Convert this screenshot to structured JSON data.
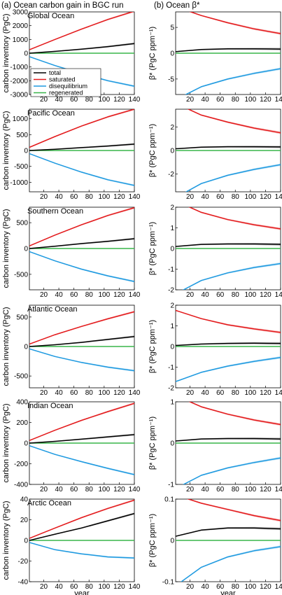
{
  "figure": {
    "col_titles": [
      "(a) Ocean carbon gain in BGC run",
      "(b) Ocean β*"
    ],
    "left_ylabel": "carbon inventory (PgC)",
    "right_ylabel": "β* (PgC ppm⁻¹)",
    "xlabel": "year",
    "legend": [
      "total",
      "saturated",
      "disequilibrium",
      "regenerated"
    ],
    "colors": {
      "total": "#000000",
      "saturated": "#e31a1c",
      "disequilibrium": "#1f9ae0",
      "regenerated": "#39b54a"
    }
  },
  "chart_data": [
    {
      "type": "line",
      "panel": "a",
      "title": "Global Ocean",
      "xlim": [
        1,
        140
      ],
      "ylim": [
        -3000,
        3000
      ],
      "xticks": [
        20,
        40,
        60,
        80,
        100,
        120,
        140
      ],
      "yticks": [
        -3000,
        -2000,
        -1000,
        0,
        1000,
        2000,
        3000
      ],
      "x": [
        1,
        35,
        70,
        105,
        140
      ],
      "series": [
        {
          "name": "total",
          "values": [
            0,
            130,
            290,
            480,
            700
          ]
        },
        {
          "name": "saturated",
          "values": [
            250,
            1000,
            1750,
            2450,
            3050
          ]
        },
        {
          "name": "disequilibrium",
          "values": [
            -250,
            -900,
            -1480,
            -2000,
            -2400
          ]
        },
        {
          "name": "regenerated",
          "values": [
            0,
            0,
            0,
            0,
            0
          ]
        }
      ]
    },
    {
      "type": "line",
      "panel": "b",
      "title": "",
      "xlim": [
        1,
        140
      ],
      "ylim": [
        -8,
        8
      ],
      "xticks": [
        20,
        40,
        60,
        80,
        100,
        120,
        140
      ],
      "yticks": [
        -5,
        0,
        5
      ],
      "x": [
        1,
        35,
        70,
        105,
        140
      ],
      "series": [
        {
          "name": "total",
          "values": [
            0.3,
            0.7,
            0.85,
            0.85,
            0.8
          ]
        },
        {
          "name": "saturated",
          "values": [
            9,
            7.3,
            5.9,
            4.7,
            3.8
          ]
        },
        {
          "name": "disequilibrium",
          "values": [
            -9,
            -6.5,
            -5,
            -3.9,
            -3.0
          ]
        },
        {
          "name": "regenerated",
          "values": [
            0,
            0,
            0,
            0,
            0
          ]
        }
      ]
    },
    {
      "type": "line",
      "panel": "a",
      "title": "Pacific Ocean",
      "xlim": [
        1,
        140
      ],
      "ylim": [
        -1300,
        1300
      ],
      "xticks": [
        20,
        40,
        60,
        80,
        100,
        120,
        140
      ],
      "yticks": [
        -1000,
        -500,
        0,
        500,
        1000
      ],
      "x": [
        1,
        35,
        70,
        105,
        140
      ],
      "series": [
        {
          "name": "total",
          "values": [
            0,
            40,
            90,
            140,
            200
          ]
        },
        {
          "name": "saturated",
          "values": [
            100,
            440,
            770,
            1060,
            1300
          ]
        },
        {
          "name": "disequilibrium",
          "values": [
            -100,
            -400,
            -680,
            -920,
            -1100
          ]
        },
        {
          "name": "regenerated",
          "values": [
            0,
            0,
            0,
            0,
            0
          ]
        }
      ]
    },
    {
      "type": "line",
      "panel": "b",
      "title": "",
      "xlim": [
        1,
        140
      ],
      "ylim": [
        -3.5,
        3.5
      ],
      "xticks": [
        20,
        40,
        60,
        80,
        100,
        120,
        140
      ],
      "yticks": [
        -2,
        0,
        2
      ],
      "x": [
        1,
        35,
        70,
        105,
        140
      ],
      "series": [
        {
          "name": "total",
          "values": [
            0.15,
            0.28,
            0.32,
            0.32,
            0.3
          ]
        },
        {
          "name": "saturated",
          "values": [
            4,
            3,
            2.4,
            1.9,
            1.5
          ]
        },
        {
          "name": "disequilibrium",
          "values": [
            -4,
            -2.8,
            -2.1,
            -1.6,
            -1.2
          ]
        },
        {
          "name": "regenerated",
          "values": [
            0,
            0,
            0,
            0,
            0
          ]
        }
      ]
    },
    {
      "type": "line",
      "panel": "a",
      "title": "Southern Ocean",
      "xlim": [
        1,
        140
      ],
      "ylim": [
        -800,
        800
      ],
      "xticks": [
        20,
        40,
        60,
        80,
        100,
        120,
        140
      ],
      "yticks": [
        -500,
        0,
        500
      ],
      "x": [
        1,
        35,
        70,
        105,
        140
      ],
      "series": [
        {
          "name": "total",
          "values": [
            0,
            45,
            95,
            140,
            190
          ]
        },
        {
          "name": "saturated",
          "values": [
            50,
            260,
            460,
            640,
            790
          ]
        },
        {
          "name": "disequilibrium",
          "values": [
            -60,
            -240,
            -400,
            -530,
            -640
          ]
        },
        {
          "name": "regenerated",
          "values": [
            0,
            0,
            0,
            0,
            0
          ]
        }
      ]
    },
    {
      "type": "line",
      "panel": "b",
      "title": "",
      "xlim": [
        1,
        140
      ],
      "ylim": [
        -2,
        2
      ],
      "xticks": [
        20,
        40,
        60,
        80,
        100,
        120,
        140
      ],
      "yticks": [
        -2,
        -1,
        0,
        1,
        2
      ],
      "x": [
        1,
        35,
        70,
        105,
        140
      ],
      "series": [
        {
          "name": "total",
          "values": [
            0.1,
            0.2,
            0.22,
            0.22,
            0.2
          ]
        },
        {
          "name": "saturated",
          "values": [
            2.3,
            1.75,
            1.4,
            1.15,
            0.95
          ]
        },
        {
          "name": "disequilibrium",
          "values": [
            -2.2,
            -1.55,
            -1.18,
            -0.92,
            -0.73
          ]
        },
        {
          "name": "regenerated",
          "values": [
            0,
            0,
            0,
            0,
            0
          ]
        }
      ]
    },
    {
      "type": "line",
      "panel": "a",
      "title": "Atlantic Ocean",
      "xlim": [
        1,
        140
      ],
      "ylim": [
        -700,
        700
      ],
      "xticks": [
        20,
        40,
        60,
        80,
        100,
        120,
        140
      ],
      "yticks": [
        -500,
        0,
        500
      ],
      "x": [
        1,
        35,
        70,
        105,
        140
      ],
      "series": [
        {
          "name": "total",
          "values": [
            0,
            30,
            70,
            120,
            170
          ]
        },
        {
          "name": "saturated",
          "values": [
            40,
            200,
            340,
            470,
            590
          ]
        },
        {
          "name": "disequilibrium",
          "values": [
            -40,
            -170,
            -270,
            -350,
            -410
          ]
        },
        {
          "name": "regenerated",
          "values": [
            0,
            0,
            0,
            0,
            0
          ]
        }
      ]
    },
    {
      "type": "line",
      "panel": "b",
      "title": "",
      "xlim": [
        1,
        140
      ],
      "ylim": [
        -2,
        2
      ],
      "xticks": [
        20,
        40,
        60,
        80,
        100,
        120,
        140
      ],
      "yticks": [
        -2,
        -1,
        0,
        1,
        2
      ],
      "x": [
        1,
        35,
        70,
        105,
        140
      ],
      "series": [
        {
          "name": "total",
          "values": [
            0.05,
            0.12,
            0.15,
            0.16,
            0.15
          ]
        },
        {
          "name": "saturated",
          "values": [
            1.75,
            1.35,
            1.05,
            0.85,
            0.68
          ]
        },
        {
          "name": "disequilibrium",
          "values": [
            -1.7,
            -1.25,
            -0.95,
            -0.72,
            -0.53
          ]
        },
        {
          "name": "regenerated",
          "values": [
            0,
            0,
            0,
            0,
            0
          ]
        }
      ]
    },
    {
      "type": "line",
      "panel": "a",
      "title": "Indian Ocean",
      "xlim": [
        1,
        140
      ],
      "ylim": [
        -400,
        400
      ],
      "xticks": [
        20,
        40,
        60,
        80,
        100,
        120,
        140
      ],
      "yticks": [
        -400,
        -200,
        0,
        200,
        400
      ],
      "x": [
        1,
        35,
        70,
        105,
        140
      ],
      "series": [
        {
          "name": "total",
          "values": [
            0,
            17,
            38,
            60,
            82
          ]
        },
        {
          "name": "saturated",
          "values": [
            25,
            125,
            220,
            305,
            385
          ]
        },
        {
          "name": "disequilibrium",
          "values": [
            -25,
            -110,
            -180,
            -245,
            -305
          ]
        },
        {
          "name": "regenerated",
          "values": [
            0,
            0,
            0,
            0,
            0
          ]
        }
      ]
    },
    {
      "type": "line",
      "panel": "b",
      "title": "",
      "xlim": [
        1,
        140
      ],
      "ylim": [
        -1,
        1
      ],
      "xticks": [
        20,
        40,
        60,
        80,
        100,
        120,
        140
      ],
      "yticks": [
        -1,
        0,
        1
      ],
      "x": [
        1,
        35,
        70,
        105,
        140
      ],
      "series": [
        {
          "name": "total",
          "values": [
            0.05,
            0.1,
            0.11,
            0.11,
            0.1
          ]
        },
        {
          "name": "saturated",
          "values": [
            1.15,
            0.88,
            0.7,
            0.56,
            0.45
          ]
        },
        {
          "name": "disequilibrium",
          "values": [
            -1.1,
            -0.78,
            -0.6,
            -0.47,
            -0.36
          ]
        },
        {
          "name": "regenerated",
          "values": [
            0,
            0,
            0,
            0,
            0
          ]
        }
      ]
    },
    {
      "type": "line",
      "panel": "a",
      "title": "Arctic Ocean",
      "xlim": [
        1,
        140
      ],
      "ylim": [
        -40,
        40
      ],
      "xticks": [
        20,
        40,
        60,
        80,
        100,
        120,
        140
      ],
      "yticks": [
        -40,
        -20,
        0,
        20,
        40
      ],
      "x": [
        1,
        35,
        70,
        105,
        140
      ],
      "series": [
        {
          "name": "total",
          "values": [
            0,
            6,
            12,
            19,
            26
          ]
        },
        {
          "name": "saturated",
          "values": [
            2,
            12,
            22,
            31,
            39
          ]
        },
        {
          "name": "disequilibrium",
          "values": [
            -2,
            -9,
            -13,
            -16,
            -17
          ]
        },
        {
          "name": "regenerated",
          "values": [
            0,
            0,
            0,
            0,
            0
          ]
        }
      ]
    },
    {
      "type": "line",
      "panel": "b",
      "title": "",
      "xlim": [
        1,
        140
      ],
      "ylim": [
        -0.1,
        0.1
      ],
      "xticks": [
        20,
        40,
        60,
        80,
        100,
        120,
        140
      ],
      "yticks": [
        -0.1,
        0,
        0.1
      ],
      "x": [
        1,
        35,
        70,
        105,
        140
      ],
      "series": [
        {
          "name": "total",
          "values": [
            0.01,
            0.025,
            0.03,
            0.03,
            0.028
          ]
        },
        {
          "name": "saturated",
          "values": [
            0.11,
            0.09,
            0.075,
            0.06,
            0.048
          ]
        },
        {
          "name": "disequilibrium",
          "values": [
            -0.11,
            -0.065,
            -0.04,
            -0.025,
            -0.015
          ]
        },
        {
          "name": "regenerated",
          "values": [
            0,
            0,
            0,
            0,
            0
          ]
        }
      ]
    }
  ]
}
